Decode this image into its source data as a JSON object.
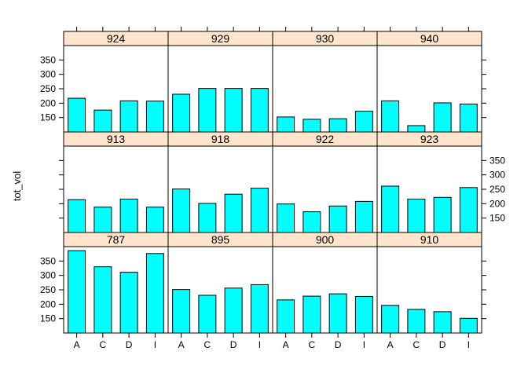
{
  "chart_data": {
    "type": "bar",
    "ylabel": "tot_vol",
    "xlabel": "",
    "categories": [
      "A",
      "C",
      "D",
      "I"
    ],
    "ylim": [
      100,
      400
    ],
    "yticks": [
      150,
      200,
      250,
      300,
      350
    ],
    "bar_color": "#00FFFF",
    "strip_color": "#FFE5CC",
    "panels": [
      {
        "name": "924",
        "values": [
          217,
          176,
          208,
          207
        ]
      },
      {
        "name": "929",
        "values": [
          231,
          251,
          251,
          251
        ]
      },
      {
        "name": "930",
        "values": [
          152,
          144,
          146,
          172
        ]
      },
      {
        "name": "940",
        "values": [
          208,
          122,
          201,
          197
        ]
      },
      {
        "name": "913",
        "values": [
          214,
          188,
          216,
          188
        ]
      },
      {
        "name": "918",
        "values": [
          251,
          201,
          233,
          254
        ]
      },
      {
        "name": "922",
        "values": [
          199,
          172,
          192,
          208
        ]
      },
      {
        "name": "923",
        "values": [
          261,
          216,
          222,
          256
        ]
      },
      {
        "name": "787",
        "values": [
          386,
          330,
          311,
          376
        ]
      },
      {
        "name": "895",
        "values": [
          251,
          231,
          256,
          268
        ]
      },
      {
        "name": "900",
        "values": [
          215,
          228,
          236,
          227
        ]
      },
      {
        "name": "910",
        "values": [
          196,
          182,
          174,
          151
        ]
      }
    ]
  }
}
